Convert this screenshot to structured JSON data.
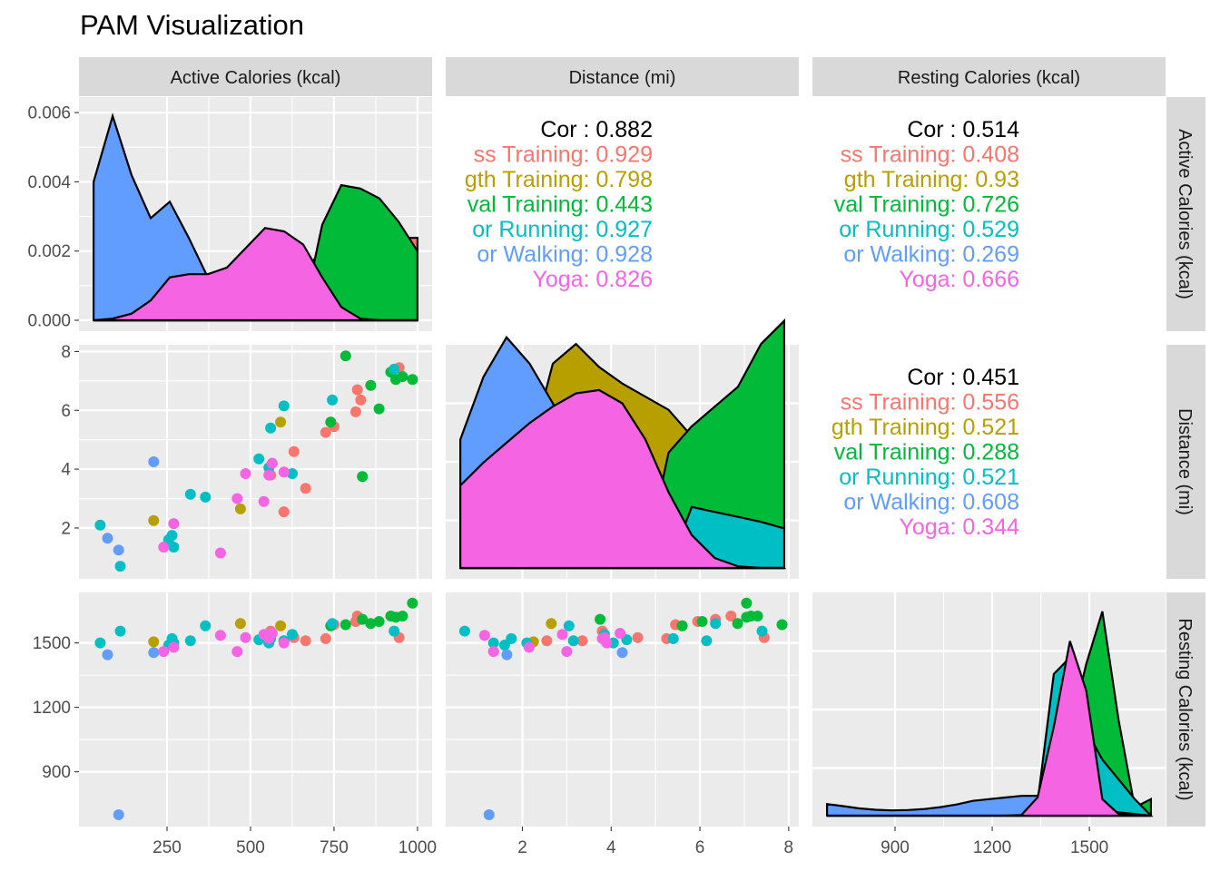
{
  "title": "PAM Visualization",
  "colors": {
    "Cross Training": "#F8766D",
    "Strength Training": "#B79F00",
    "Interval Training": "#00BA38",
    "Outdoor Running": "#00BFC4",
    "Outdoor Walking": "#619CFF",
    "Yoga": "#F564E3"
  },
  "chart_data": {
    "type": "scatter",
    "variables": [
      "Active Calories (kcal)",
      "Distance (mi)",
      "Resting Calories (kcal)"
    ],
    "ranges": [
      [
        30,
        1000
      ],
      [
        0.6,
        7.9
      ],
      [
        690,
        1690
      ]
    ],
    "ticks": [
      {
        "labels": [
          "0.000",
          "0.002",
          "0.004",
          "0.006"
        ],
        "values": [
          0,
          0.002,
          0.004,
          0.006
        ]
      },
      {
        "labels": [
          "250",
          "500",
          "750",
          "1000"
        ],
        "values": [
          250,
          500,
          750,
          1000
        ]
      },
      {
        "labels": [
          "2",
          "4",
          "6",
          "8"
        ],
        "values": [
          2,
          4,
          6,
          8
        ]
      },
      {
        "labels": [
          "900",
          "1200",
          "1500"
        ],
        "values": [
          900,
          1200,
          1500
        ]
      }
    ],
    "density_ylim": [
      0,
      0.0065
    ],
    "correlations": [
      {
        "panel": "Active Calories vs Distance",
        "overall": "Cor : 0.882",
        "groups": [
          "ss Training: 0.929",
          "gth Training: 0.798",
          "val Training: 0.443",
          "or Running: 0.927",
          "or Walking: 0.928",
          "Yoga: 0.826"
        ]
      },
      {
        "panel": "Active Calories vs Resting Calories",
        "overall": "Cor : 0.514",
        "groups": [
          "ss Training: 0.408",
          "gth Training: 0.93",
          "val Training: 0.726",
          "or Running: 0.529",
          "or Walking: 0.269",
          "Yoga: 0.666"
        ]
      },
      {
        "panel": "Distance vs Resting Calories",
        "overall": "Cor : 0.451",
        "groups": [
          "ss Training: 0.556",
          "gth Training: 0.521",
          "val Training: 0.288",
          "or Running: 0.521",
          "or Walking: 0.608",
          "Yoga: 0.344"
        ]
      }
    ],
    "series": [
      {
        "name": "Cross Training",
        "points": [
          [
            945,
            7.45,
            1525
          ],
          [
            820,
            6.7,
            1625
          ],
          [
            830,
            6.35,
            1610
          ],
          [
            815,
            5.95,
            1600
          ],
          [
            750,
            5.45,
            1585
          ],
          [
            725,
            5.25,
            1520
          ],
          [
            665,
            3.35,
            1510
          ],
          [
            600,
            2.55,
            1510
          ],
          [
            560,
            3.8,
            1555
          ],
          [
            630,
            4.6,
            1525
          ]
        ]
      },
      {
        "name": "Strength Training",
        "points": [
          [
            210,
            2.25,
            1505
          ],
          [
            470,
            2.65,
            1590
          ],
          [
            590,
            5.6,
            1580
          ]
        ]
      },
      {
        "name": "Interval Training",
        "points": [
          [
            785,
            7.85,
            1585
          ],
          [
            920,
            7.3,
            1625
          ],
          [
            935,
            7.05,
            1620
          ],
          [
            955,
            7.15,
            1625
          ],
          [
            985,
            7.05,
            1685
          ],
          [
            885,
            6.05,
            1600
          ],
          [
            860,
            6.85,
            1590
          ],
          [
            835,
            3.75,
            1610
          ],
          [
            740,
            5.6,
            1580
          ]
        ]
      },
      {
        "name": "Outdoor Running",
        "points": [
          [
            50,
            2.1,
            1500
          ],
          [
            110,
            0.7,
            1555
          ],
          [
            255,
            1.6,
            1490
          ],
          [
            270,
            1.35,
            1500
          ],
          [
            265,
            1.75,
            1520
          ],
          [
            320,
            3.15,
            1510
          ],
          [
            365,
            3.05,
            1580
          ],
          [
            525,
            4.35,
            1515
          ],
          [
            555,
            4.05,
            1500
          ],
          [
            560,
            5.4,
            1520
          ],
          [
            600,
            6.15,
            1510
          ],
          [
            625,
            3.85,
            1540
          ],
          [
            745,
            6.35,
            1590
          ],
          [
            930,
            7.4,
            1555
          ]
        ]
      },
      {
        "name": "Outdoor Walking",
        "points": [
          [
            72,
            1.65,
            1445
          ],
          [
            105,
            1.25,
            700
          ],
          [
            210,
            4.25,
            1455
          ]
        ]
      },
      {
        "name": "Yoga",
        "points": [
          [
            240,
            1.35,
            1460
          ],
          [
            270,
            2.15,
            1480
          ],
          [
            410,
            1.15,
            1535
          ],
          [
            460,
            3.0,
            1460
          ],
          [
            485,
            3.85,
            1525
          ],
          [
            540,
            2.9,
            1540
          ],
          [
            555,
            3.8,
            1520
          ],
          [
            565,
            4.2,
            1545
          ],
          [
            600,
            3.9,
            1500
          ]
        ]
      }
    ],
    "densities": {
      "Active Calories (kcal)": [
        {
          "name": "Cross Training",
          "values": [
            0,
            0,
            0,
            0,
            0,
            0,
            0,
            1e-05,
            6e-05,
            0.0003,
            0.0008,
            0.0015,
            0.0021,
            0.0024,
            0.0027,
            0.0026,
            0.0025,
            0.0025
          ]
        },
        {
          "name": "Strength Training",
          "values": [
            0,
            0,
            0,
            0,
            0,
            0,
            0,
            0,
            0,
            0,
            0,
            0,
            0,
            0,
            0,
            0,
            0,
            0
          ]
        },
        {
          "name": "Outdoor Running",
          "values": [
            0,
            0.0001,
            0.0003,
            0.0006,
            0.0009,
            0.0012,
            0.0014,
            0.0015,
            0.0015,
            0.0014,
            0.0013,
            0.0011,
            0.00095,
            0.0008,
            0.0006,
            0.00045,
            0.0003,
            0.0002
          ]
        },
        {
          "name": "Interval Training",
          "values": [
            0,
            0,
            0,
            0,
            0,
            0,
            0,
            0,
            0,
            0,
            0,
            0.0002,
            0.0029,
            0.0041,
            0.004,
            0.0037,
            0.003,
            0.0021
          ]
        },
        {
          "name": "Outdoor Walking",
          "values": [
            0.0042,
            0.0062,
            0.0044,
            0.0031,
            0.0036,
            0.0025,
            0.0013,
            0.0004,
            0.0001,
            2e-05,
            0,
            0,
            0,
            0,
            0,
            0,
            0,
            0
          ]
        },
        {
          "name": "Yoga",
          "values": [
            0,
            5e-05,
            0.0002,
            0.0006,
            0.0013,
            0.0014,
            0.0014,
            0.0016,
            0.0022,
            0.0028,
            0.0027,
            0.0023,
            0.0013,
            0.0004,
            5e-05,
            0,
            0,
            0
          ]
        }
      ],
      "Distance (mi)": [
        {
          "name": "Cross Training",
          "values": [
            0,
            0,
            0,
            0,
            0.0001,
            0.0003,
            0.0006,
            0.0009,
            0.0011,
            0.0012,
            0.0013,
            0.0014,
            0.0015,
            0.0016,
            0.0017
          ]
        },
        {
          "name": "Strength Training",
          "values": [
            0,
            0,
            0,
            0.0035,
            0.0062,
            0.0068,
            0.0061,
            0.0056,
            0.0052,
            0.0048,
            0.004,
            0.003,
            0.002,
            0.001,
            0
          ]
        },
        {
          "name": "Interval Training",
          "values": [
            0,
            0,
            0,
            0,
            0,
            0,
            0,
            0,
            0.0002,
            0.0035,
            0.0043,
            0.0049,
            0.0055,
            0.0068,
            0.0075
          ]
        },
        {
          "name": "Outdoor Running",
          "values": [
            0,
            0,
            0,
            0,
            0,
            0,
            0,
            0,
            0,
            0,
            0.00185,
            0.0017,
            0.00155,
            0.0014,
            0.0012
          ]
        },
        {
          "name": "Outdoor Walking",
          "values": [
            0.0039,
            0.0058,
            0.007,
            0.0062,
            0.005,
            0.0035,
            0.0025,
            0.0018,
            0.001,
            0.0004,
            0,
            0,
            0,
            0,
            0
          ]
        },
        {
          "name": "Yoga",
          "values": [
            0.0025,
            0.0032,
            0.0038,
            0.0044,
            0.0049,
            0.0053,
            0.0054,
            0.005,
            0.0039,
            0.0023,
            0.001,
            0.0003,
            5e-05,
            0,
            0
          ]
        }
      ],
      "Resting Calories (kcal)": [
        {
          "name": "Interval Training",
          "values": [
            0,
            0,
            0,
            0,
            0,
            0,
            0,
            0,
            0,
            0,
            0,
            0,
            0,
            0,
            0.0006,
            0.0025,
            0.0046,
            0.0062,
            0.0029,
            0.00025,
            0.0005
          ]
        },
        {
          "name": "Outdoor Running",
          "values": [
            0,
            0,
            0,
            0,
            0,
            0,
            0,
            0,
            0,
            0,
            0,
            0,
            0,
            0.0004,
            0.0043,
            0.0048,
            0.0026,
            0.0017,
            0.0011,
            0.0005,
            0
          ]
        },
        {
          "name": "Outdoor Walking",
          "values": [
            0.00035,
            0.00029,
            0.00022,
            0.00018,
            0.00016,
            0.00017,
            0.0002,
            0.00026,
            0.00034,
            0.00045,
            0.0005,
            0.00055,
            0.0006,
            0.0006,
            0.00055,
            0.0004,
            0.00025,
            0.00015,
            0.0001,
            5e-05,
            0
          ]
        },
        {
          "name": "Yoga",
          "values": [
            0,
            0,
            0,
            0,
            0,
            0,
            0,
            0,
            0,
            0,
            0,
            0,
            2e-05,
            0.00055,
            0.0027,
            0.0053,
            0.0038,
            0.0005,
            5e-05,
            0,
            0
          ]
        }
      ]
    }
  }
}
